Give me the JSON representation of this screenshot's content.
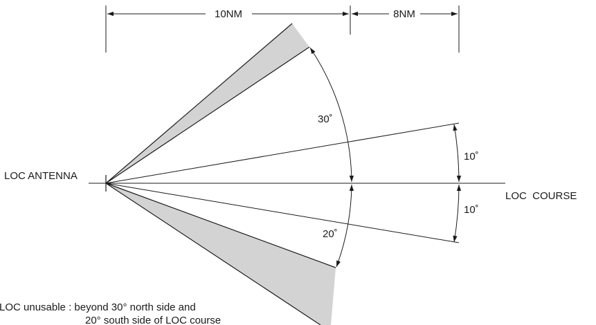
{
  "labels": {
    "dist_1": "10NM",
    "dist_2": "8NM",
    "antenna": "LOC ANTENNA",
    "course": "LOC  COURSE",
    "angle_north_outer": "30˚",
    "angle_south_outer": "20˚",
    "angle_north_inner": "10˚",
    "angle_south_inner": "10˚",
    "note_line_1": "LOC unusable : beyond 30° north side and",
    "note_line_2": "20° south side of LOC course"
  },
  "colors": {
    "line": "#1a1a1a",
    "unusable_shading": "#d3d3d3"
  }
}
